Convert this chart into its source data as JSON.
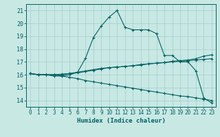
{
  "xlabel": "Humidex (Indice chaleur)",
  "bg_color": "#c8e8e4",
  "grid_color": "#a0cccc",
  "line_color": "#006060",
  "xlim": [
    -0.5,
    23.5
  ],
  "ylim": [
    13.5,
    21.5
  ],
  "xticks": [
    0,
    1,
    2,
    3,
    4,
    5,
    6,
    7,
    8,
    9,
    10,
    11,
    12,
    13,
    14,
    15,
    16,
    17,
    18,
    19,
    20,
    21,
    22,
    23
  ],
  "yticks": [
    14,
    15,
    16,
    17,
    18,
    19,
    20,
    21
  ],
  "lines": [
    {
      "x": [
        0,
        1,
        2,
        3,
        4,
        5,
        6,
        7,
        8,
        9,
        10,
        11,
        12,
        13,
        14,
        15,
        16,
        17,
        18,
        19,
        20,
        21,
        22,
        23
      ],
      "y": [
        16.1,
        16.0,
        16.0,
        15.9,
        15.9,
        16.0,
        16.2,
        17.3,
        18.9,
        19.8,
        20.5,
        21.0,
        19.7,
        19.5,
        19.5,
        19.5,
        19.2,
        17.5,
        17.5,
        17.0,
        17.0,
        16.3,
        14.2,
        13.8
      ]
    },
    {
      "x": [
        0,
        1,
        2,
        3,
        4,
        5,
        6,
        7,
        8,
        9,
        10,
        11,
        12,
        13,
        14,
        15,
        16,
        17,
        18,
        19,
        20,
        21,
        22,
        23
      ],
      "y": [
        16.1,
        16.0,
        16.0,
        16.0,
        16.0,
        16.1,
        16.15,
        16.25,
        16.35,
        16.45,
        16.55,
        16.6,
        16.65,
        16.7,
        16.8,
        16.85,
        16.9,
        16.95,
        17.0,
        17.05,
        17.1,
        17.15,
        17.2,
        17.25
      ]
    },
    {
      "x": [
        0,
        1,
        2,
        3,
        4,
        5,
        6,
        7,
        8,
        9,
        10,
        11,
        12,
        13,
        14,
        15,
        16,
        17,
        18,
        19,
        20,
        21,
        22,
        23
      ],
      "y": [
        16.1,
        16.0,
        16.0,
        16.0,
        16.05,
        16.1,
        16.2,
        16.3,
        16.4,
        16.5,
        16.55,
        16.6,
        16.65,
        16.7,
        16.75,
        16.85,
        16.9,
        16.95,
        17.05,
        17.1,
        17.15,
        17.25,
        17.45,
        17.55
      ]
    },
    {
      "x": [
        0,
        1,
        2,
        3,
        4,
        5,
        6,
        7,
        8,
        9,
        10,
        11,
        12,
        13,
        14,
        15,
        16,
        17,
        18,
        19,
        20,
        21,
        22,
        23
      ],
      "y": [
        16.1,
        16.0,
        16.0,
        16.0,
        15.9,
        15.8,
        15.7,
        15.55,
        15.45,
        15.35,
        15.25,
        15.15,
        15.05,
        14.95,
        14.85,
        14.75,
        14.65,
        14.55,
        14.45,
        14.35,
        14.3,
        14.2,
        14.1,
        14.0
      ]
    }
  ]
}
